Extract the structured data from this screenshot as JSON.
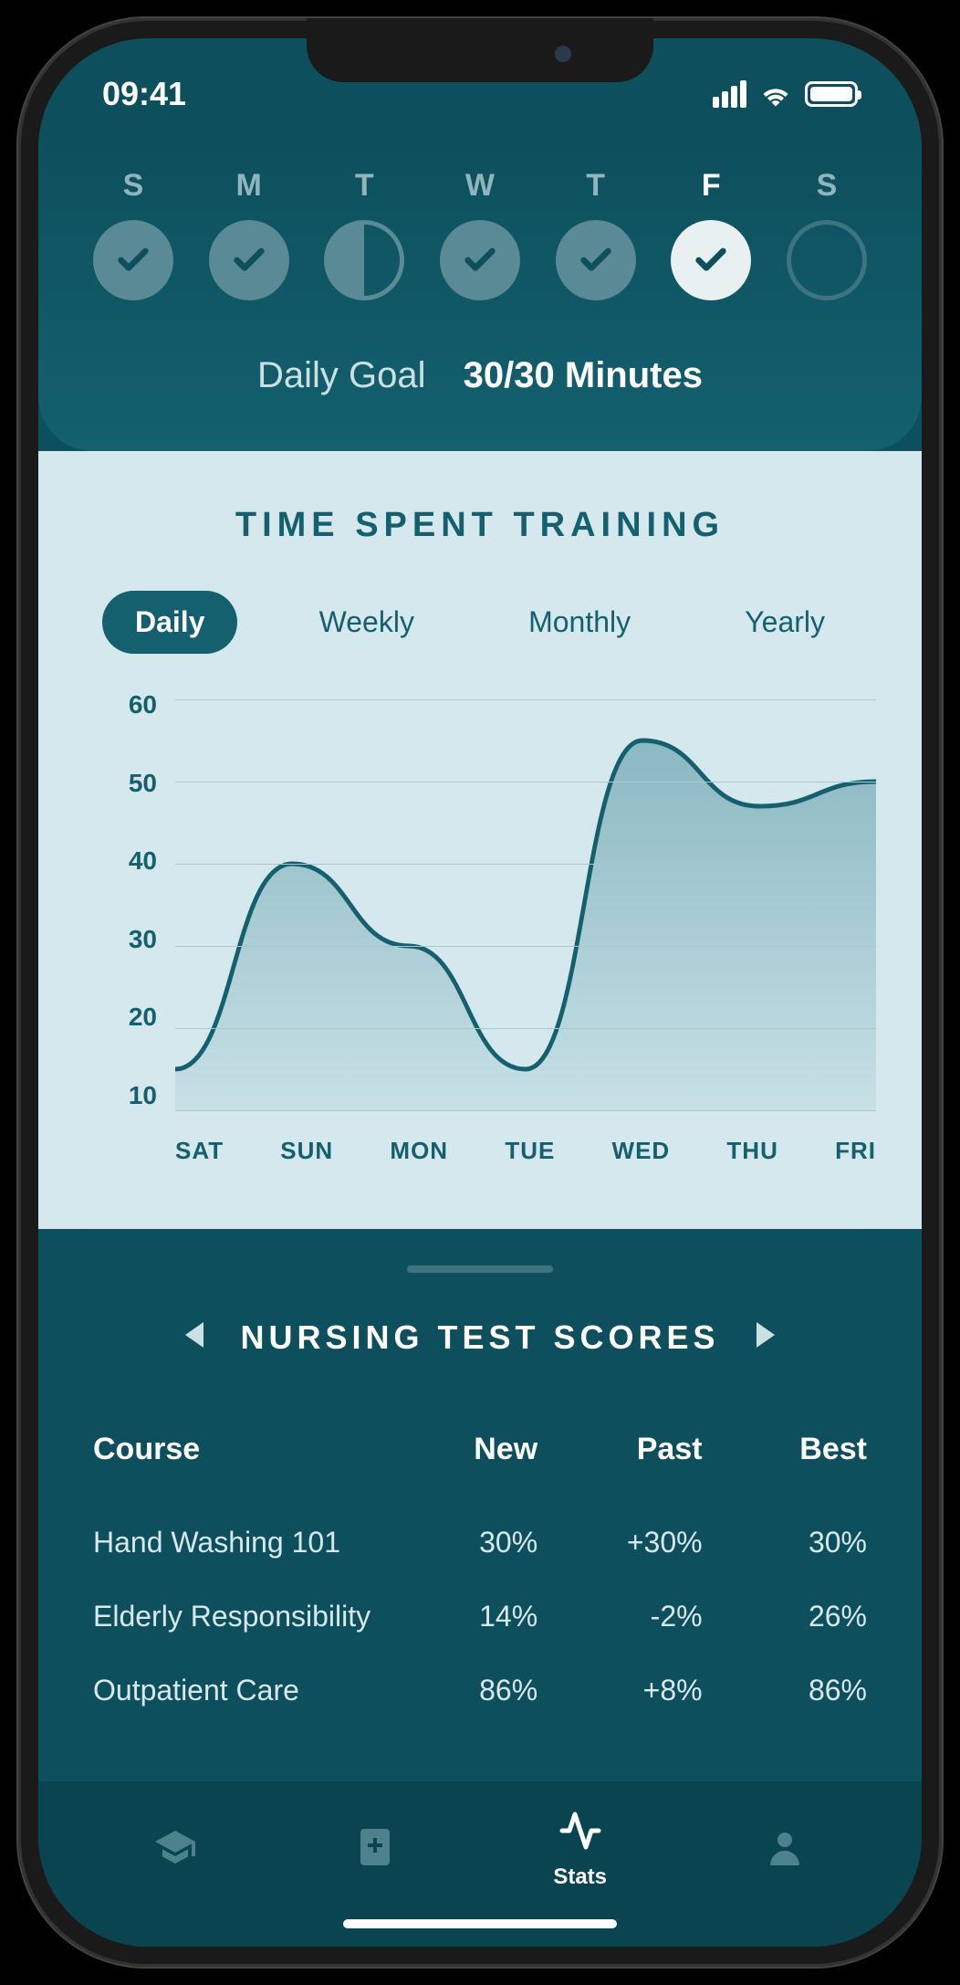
{
  "colors": {
    "phone_bezel": "#1a1a1a",
    "header_bg_top": "#0d4f5c",
    "header_bg_bottom": "#13606f",
    "chart_bg": "#d5e8ed",
    "panel_bg": "#0d4f5c",
    "tabbar_bg": "#0a4450",
    "accent": "#14606e",
    "muted_circle": "#5a8a95",
    "text_light": "#cce0e4",
    "text_muted": "#8fb5bd",
    "grid_line": "#a8c8d0",
    "inactive_tab": "#4d828d"
  },
  "status_bar": {
    "time": "09:41"
  },
  "week": {
    "days": [
      {
        "label": "S",
        "state": "done"
      },
      {
        "label": "M",
        "state": "done"
      },
      {
        "label": "T",
        "state": "half"
      },
      {
        "label": "W",
        "state": "done"
      },
      {
        "label": "T",
        "state": "done"
      },
      {
        "label": "F",
        "state": "active"
      },
      {
        "label": "S",
        "state": "empty"
      }
    ]
  },
  "daily_goal": {
    "label": "Daily Goal",
    "value": "30/30 Minutes"
  },
  "chart": {
    "title": "TIME SPENT TRAINING",
    "type": "area",
    "tabs": [
      "Daily",
      "Weekly",
      "Monthly",
      "Yearly"
    ],
    "active_tab": "Daily",
    "y_ticks": [
      60,
      50,
      40,
      30,
      20,
      10
    ],
    "ylim": [
      10,
      60
    ],
    "x_labels": [
      "SAT",
      "SUN",
      "MON",
      "TUE",
      "WED",
      "THU",
      "FRI"
    ],
    "values": [
      15,
      40,
      30,
      15,
      55,
      47,
      50
    ],
    "line_color": "#14606e",
    "fill_color_top": "#8bb8c2",
    "fill_color_bottom": "#c7e0e6",
    "line_width": 5,
    "grid_color": "#a8c8d0",
    "background_color": "#d5e8ed",
    "title_fontsize": 38,
    "axis_fontsize": 28
  },
  "scores": {
    "title": "NURSING TEST SCORES",
    "columns": [
      "Course",
      "New",
      "Past",
      "Best"
    ],
    "rows": [
      {
        "course": "Hand Washing 101",
        "new": "30%",
        "past": "+30%",
        "best": "30%"
      },
      {
        "course": "Elderly Responsibility",
        "new": "14%",
        "past": "-2%",
        "best": "26%"
      },
      {
        "course": "Outpatient Care",
        "new": "86%",
        "past": "+8%",
        "best": "86%"
      }
    ]
  },
  "tabbar": {
    "items": [
      {
        "icon": "graduation-cap-icon",
        "label": ""
      },
      {
        "icon": "book-medical-icon",
        "label": ""
      },
      {
        "icon": "activity-icon",
        "label": "Stats",
        "active": true
      },
      {
        "icon": "user-icon",
        "label": ""
      }
    ]
  }
}
